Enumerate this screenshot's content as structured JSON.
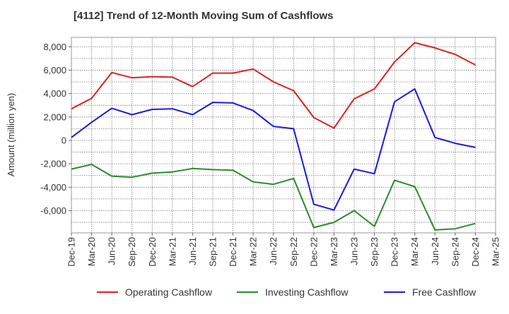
{
  "chart_data": {
    "type": "line",
    "title": "[4112]  Trend of 12-Month Moving Sum of Cashflows",
    "ylabel": "Amount (million yen)",
    "xlabel": "",
    "x_ticks": [
      "Dec-19",
      "Mar-20",
      "Jun-20",
      "Sep-20",
      "Dec-20",
      "Mar-21",
      "Jun-21",
      "Sep-21",
      "Dec-21",
      "Mar-22",
      "Jun-22",
      "Sep-22",
      "Dec-22",
      "Mar-23",
      "Jun-23",
      "Sep-23",
      "Dec-23",
      "Mar-24",
      "Jun-24",
      "Sep-24",
      "Dec-24",
      "Mar-25"
    ],
    "categories": [
      "Dec-19",
      "Mar-20",
      "Jun-20",
      "Sep-20",
      "Dec-20",
      "Mar-21",
      "Jun-21",
      "Sep-21",
      "Dec-21",
      "Mar-22",
      "Jun-22",
      "Sep-22",
      "Dec-22",
      "Mar-23",
      "Jun-23",
      "Sep-23",
      "Dec-23",
      "Mar-24",
      "Jun-24",
      "Sep-24",
      "Dec-24"
    ],
    "y_ticks": [
      8000,
      6000,
      4000,
      2000,
      0,
      -2000,
      -4000,
      -6000
    ],
    "y_tick_labels": [
      "8,000",
      "6,000",
      "4,000",
      "2,000",
      "0",
      "-2,000",
      "-4,000",
      "-6,000"
    ],
    "ylim": [
      -7900,
      8800
    ],
    "grid": true,
    "legend_position": "bottom",
    "series": [
      {
        "name": "Operating Cashflow",
        "color": "#e02020",
        "values": [
          2700,
          3600,
          5800,
          5350,
          5450,
          5400,
          4600,
          5750,
          5750,
          6100,
          5000,
          4250,
          1950,
          1050,
          3550,
          4400,
          6700,
          8350,
          7900,
          7350,
          6450
        ]
      },
      {
        "name": "Investing Cashflow",
        "color": "#2c8a2c",
        "values": [
          -2450,
          -2050,
          -3050,
          -3150,
          -2800,
          -2700,
          -2400,
          -2500,
          -2550,
          -3550,
          -3750,
          -3250,
          -7450,
          -7000,
          -6000,
          -7350,
          -3400,
          -3950,
          -7650,
          -7550,
          -7100
        ]
      },
      {
        "name": "Free Cashflow",
        "color": "#1a1adf",
        "values": [
          250,
          1550,
          2750,
          2200,
          2650,
          2700,
          2200,
          3250,
          3200,
          2550,
          1200,
          1000,
          -5450,
          -5950,
          -2450,
          -2850,
          3300,
          4400,
          250,
          -250,
          -600
        ]
      }
    ]
  }
}
